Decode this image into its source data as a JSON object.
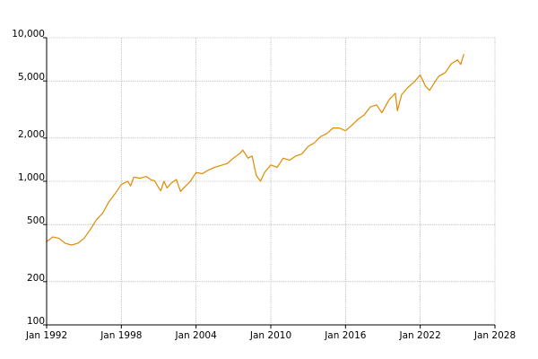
{
  "chart_data": {
    "type": "line",
    "title": "",
    "xlabel": "",
    "ylabel": "",
    "y_scale": "log",
    "grid": true,
    "legend": "none",
    "xlim": [
      "1992-01",
      "2028-01"
    ],
    "ylim": [
      100,
      10000
    ],
    "x_ticks": [
      "Jan 1992",
      "Jan 1998",
      "Jan 2004",
      "Jan 2010",
      "Jan 2016",
      "Jan 2022",
      "Jan 2028"
    ],
    "y_ticks": [
      100,
      200,
      500,
      1000,
      2000,
      5000,
      10000
    ],
    "y_tick_labels": [
      "100",
      "200",
      "500",
      "1,000",
      "2,000",
      "5,000",
      "10,000"
    ],
    "series": [
      {
        "color": "#e08a00",
        "x": [
          "1992-01",
          "1992-07",
          "1993-01",
          "1993-07",
          "1994-01",
          "1994-07",
          "1995-01",
          "1995-07",
          "1996-01",
          "1996-07",
          "1997-01",
          "1997-07",
          "1998-01",
          "1998-07",
          "1998-10",
          "1999-01",
          "1999-07",
          "2000-01",
          "2000-06",
          "2000-09",
          "2001-01",
          "2001-03",
          "2001-06",
          "2001-09",
          "2002-01",
          "2002-06",
          "2002-10",
          "2003-03",
          "2003-07",
          "2004-01",
          "2004-07",
          "2005-01",
          "2005-07",
          "2006-01",
          "2006-07",
          "2007-01",
          "2007-07",
          "2007-10",
          "2008-03",
          "2008-07",
          "2008-11",
          "2009-03",
          "2009-07",
          "2010-01",
          "2010-07",
          "2011-01",
          "2011-07",
          "2012-01",
          "2012-07",
          "2013-01",
          "2013-07",
          "2014-01",
          "2014-07",
          "2015-01",
          "2015-07",
          "2016-01",
          "2016-07",
          "2017-01",
          "2017-07",
          "2018-01",
          "2018-07",
          "2018-12",
          "2019-07",
          "2020-01",
          "2020-03",
          "2020-07",
          "2021-01",
          "2021-07",
          "2022-01",
          "2022-06",
          "2022-10",
          "2023-03",
          "2023-07",
          "2024-01",
          "2024-07",
          "2025-01",
          "2025-04",
          "2025-07"
        ],
        "y": [
          380,
          410,
          400,
          370,
          360,
          370,
          400,
          460,
          540,
          600,
          720,
          820,
          950,
          1000,
          930,
          1070,
          1050,
          1080,
          1020,
          1010,
          900,
          860,
          1000,
          900,
          970,
          1030,
          850,
          930,
          990,
          1150,
          1130,
          1200,
          1250,
          1290,
          1330,
          1450,
          1560,
          1650,
          1450,
          1500,
          1100,
          1000,
          1150,
          1300,
          1250,
          1450,
          1400,
          1500,
          1550,
          1750,
          1850,
          2050,
          2150,
          2350,
          2350,
          2250,
          2450,
          2700,
          2900,
          3300,
          3400,
          3000,
          3700,
          4100,
          3100,
          4000,
          4500,
          4900,
          5500,
          4600,
          4300,
          4900,
          5400,
          5700,
          6600,
          7000,
          6500,
          7700
        ]
      }
    ]
  }
}
